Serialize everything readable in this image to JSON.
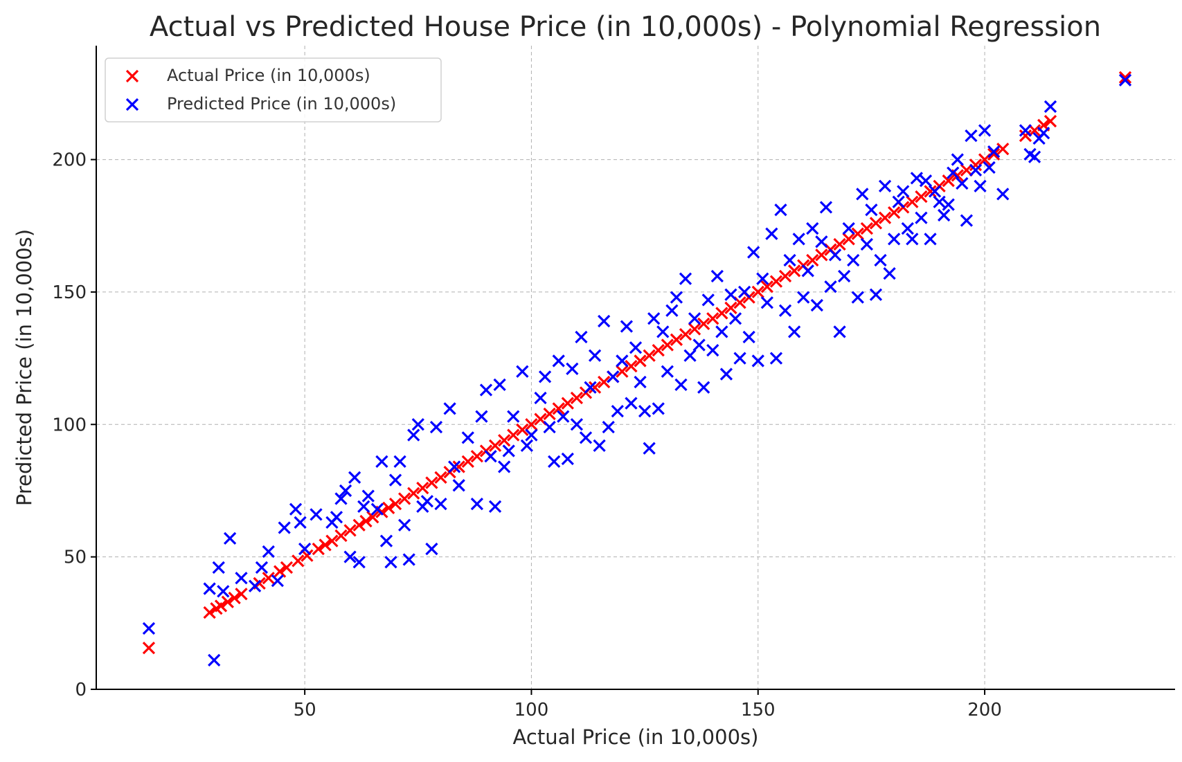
{
  "chart_data": {
    "type": "scatter",
    "title": "Actual vs Predicted House Price (in 10,000s) - Polynomial Regression",
    "xlabel": "Actual Price (in 10,000s)",
    "ylabel": "Predicted Price (in 10,000s)",
    "xlim": [
      4,
      242
    ],
    "ylim": [
      0,
      243
    ],
    "xticks": [
      50,
      100,
      150,
      200
    ],
    "yticks": [
      0,
      50,
      100,
      150,
      200
    ],
    "grid": true,
    "legend_position": "top-left",
    "marker": "x",
    "series": [
      {
        "name": "Actual Price (in 10,000s)",
        "color": "#ff0000",
        "points": [
          [
            15.6,
            15.6
          ],
          [
            29,
            29
          ],
          [
            30.5,
            30.5
          ],
          [
            31.5,
            31.5
          ],
          [
            33,
            33
          ],
          [
            34.5,
            34.5
          ],
          [
            36,
            36
          ],
          [
            40,
            40
          ],
          [
            42,
            42
          ],
          [
            44.5,
            44.5
          ],
          [
            46,
            46
          ],
          [
            48.5,
            48.5
          ],
          [
            50.5,
            50.5
          ],
          [
            53,
            53
          ],
          [
            54.5,
            54.5
          ],
          [
            56,
            56
          ],
          [
            58,
            58
          ],
          [
            60,
            60
          ],
          [
            62,
            62
          ],
          [
            63.5,
            63.5
          ],
          [
            65,
            65
          ],
          [
            67,
            67
          ],
          [
            68.5,
            68.5
          ],
          [
            70,
            70
          ],
          [
            72,
            72
          ],
          [
            74,
            74
          ],
          [
            76,
            76
          ],
          [
            78,
            78
          ],
          [
            80,
            80
          ],
          [
            82,
            82
          ],
          [
            84,
            84
          ],
          [
            86,
            86
          ],
          [
            88,
            88
          ],
          [
            90,
            90
          ],
          [
            92,
            92
          ],
          [
            94,
            94
          ],
          [
            96,
            96
          ],
          [
            98,
            98
          ],
          [
            100,
            100
          ],
          [
            102,
            102
          ],
          [
            104,
            104
          ],
          [
            106,
            106
          ],
          [
            108,
            108
          ],
          [
            110,
            110
          ],
          [
            112,
            112
          ],
          [
            114,
            114
          ],
          [
            116,
            116
          ],
          [
            118,
            118
          ],
          [
            120,
            120
          ],
          [
            122,
            122
          ],
          [
            124,
            124
          ],
          [
            126,
            126
          ],
          [
            128,
            128
          ],
          [
            130,
            130
          ],
          [
            132,
            132
          ],
          [
            134,
            134
          ],
          [
            136,
            136
          ],
          [
            138,
            138
          ],
          [
            140,
            140
          ],
          [
            142,
            142
          ],
          [
            144,
            144
          ],
          [
            146,
            146
          ],
          [
            148,
            148
          ],
          [
            150,
            150
          ],
          [
            152,
            152
          ],
          [
            154,
            154
          ],
          [
            156,
            156
          ],
          [
            158,
            158
          ],
          [
            160,
            160
          ],
          [
            162,
            162
          ],
          [
            164,
            164
          ],
          [
            166,
            166
          ],
          [
            168,
            168
          ],
          [
            170,
            170
          ],
          [
            172,
            172
          ],
          [
            174,
            174
          ],
          [
            176,
            176
          ],
          [
            178,
            178
          ],
          [
            180,
            180
          ],
          [
            182,
            182
          ],
          [
            184,
            184
          ],
          [
            186,
            186
          ],
          [
            188,
            188
          ],
          [
            190,
            190
          ],
          [
            192,
            192
          ],
          [
            194,
            194
          ],
          [
            196,
            196
          ],
          [
            198,
            198
          ],
          [
            200,
            200
          ],
          [
            202,
            202
          ],
          [
            204,
            204
          ],
          [
            209,
            209
          ],
          [
            211,
            211
          ],
          [
            213,
            213
          ],
          [
            214.5,
            214.5
          ],
          [
            231,
            231
          ]
        ]
      },
      {
        "name": "Predicted Price (in 10,000s)",
        "color": "#0000ff",
        "points": [
          [
            15.6,
            23
          ],
          [
            29,
            38
          ],
          [
            30,
            11
          ],
          [
            31,
            46
          ],
          [
            32,
            37
          ],
          [
            33.5,
            57
          ],
          [
            36,
            42
          ],
          [
            39,
            39
          ],
          [
            40.5,
            46
          ],
          [
            42,
            52
          ],
          [
            44,
            41
          ],
          [
            45.5,
            61
          ],
          [
            48,
            68
          ],
          [
            49,
            63
          ],
          [
            50,
            53
          ],
          [
            52.5,
            66
          ],
          [
            56,
            63
          ],
          [
            57,
            65
          ],
          [
            58,
            72
          ],
          [
            59,
            75
          ],
          [
            60,
            50
          ],
          [
            61,
            80
          ],
          [
            62,
            48
          ],
          [
            63,
            69
          ],
          [
            64,
            73
          ],
          [
            66,
            68
          ],
          [
            67,
            86
          ],
          [
            68,
            56
          ],
          [
            69,
            48
          ],
          [
            70,
            79
          ],
          [
            71,
            86
          ],
          [
            72,
            62
          ],
          [
            73,
            49
          ],
          [
            74,
            96
          ],
          [
            75,
            100
          ],
          [
            76,
            69
          ],
          [
            77,
            71
          ],
          [
            78,
            53
          ],
          [
            79,
            99
          ],
          [
            80,
            70
          ],
          [
            82,
            106
          ],
          [
            83,
            84
          ],
          [
            84,
            77
          ],
          [
            86,
            95
          ],
          [
            88,
            70
          ],
          [
            89,
            103
          ],
          [
            90,
            113
          ],
          [
            91,
            88
          ],
          [
            92,
            69
          ],
          [
            93,
            115
          ],
          [
            94,
            84
          ],
          [
            95,
            90
          ],
          [
            96,
            103
          ],
          [
            98,
            120
          ],
          [
            99,
            92
          ],
          [
            100,
            96
          ],
          [
            102,
            110
          ],
          [
            103,
            118
          ],
          [
            104,
            99
          ],
          [
            105,
            86
          ],
          [
            106,
            124
          ],
          [
            107,
            103
          ],
          [
            108,
            87
          ],
          [
            109,
            121
          ],
          [
            110,
            100
          ],
          [
            111,
            133
          ],
          [
            112,
            95
          ],
          [
            113,
            114
          ],
          [
            114,
            126
          ],
          [
            115,
            92
          ],
          [
            116,
            139
          ],
          [
            117,
            99
          ],
          [
            118,
            118
          ],
          [
            119,
            105
          ],
          [
            120,
            124
          ],
          [
            121,
            137
          ],
          [
            122,
            108
          ],
          [
            123,
            129
          ],
          [
            124,
            116
          ],
          [
            125,
            105
          ],
          [
            126,
            91
          ],
          [
            127,
            140
          ],
          [
            128,
            106
          ],
          [
            129,
            135
          ],
          [
            130,
            120
          ],
          [
            131,
            143
          ],
          [
            132,
            148
          ],
          [
            133,
            115
          ],
          [
            134,
            155
          ],
          [
            135,
            126
          ],
          [
            136,
            140
          ],
          [
            137,
            130
          ],
          [
            138,
            114
          ],
          [
            139,
            147
          ],
          [
            140,
            128
          ],
          [
            141,
            156
          ],
          [
            142,
            135
          ],
          [
            143,
            119
          ],
          [
            144,
            149
          ],
          [
            145,
            140
          ],
          [
            146,
            125
          ],
          [
            147,
            150
          ],
          [
            148,
            133
          ],
          [
            149,
            165
          ],
          [
            150,
            124
          ],
          [
            151,
            155
          ],
          [
            152,
            146
          ],
          [
            153,
            172
          ],
          [
            154,
            125
          ],
          [
            155,
            181
          ],
          [
            156,
            143
          ],
          [
            157,
            162
          ],
          [
            158,
            135
          ],
          [
            159,
            170
          ],
          [
            160,
            148
          ],
          [
            161,
            158
          ],
          [
            162,
            174
          ],
          [
            163,
            145
          ],
          [
            164,
            169
          ],
          [
            165,
            182
          ],
          [
            166,
            152
          ],
          [
            167,
            164
          ],
          [
            168,
            135
          ],
          [
            169,
            156
          ],
          [
            170,
            174
          ],
          [
            171,
            162
          ],
          [
            172,
            148
          ],
          [
            173,
            187
          ],
          [
            174,
            168
          ],
          [
            175,
            181
          ],
          [
            176,
            149
          ],
          [
            177,
            162
          ],
          [
            178,
            190
          ],
          [
            179,
            157
          ],
          [
            180,
            170
          ],
          [
            181,
            184
          ],
          [
            182,
            188
          ],
          [
            183,
            174
          ],
          [
            184,
            170
          ],
          [
            185,
            193
          ],
          [
            186,
            178
          ],
          [
            187,
            192
          ],
          [
            188,
            170
          ],
          [
            189,
            188
          ],
          [
            190,
            184
          ],
          [
            191,
            179
          ],
          [
            192,
            183
          ],
          [
            193,
            195
          ],
          [
            194,
            200
          ],
          [
            195,
            191
          ],
          [
            196,
            177
          ],
          [
            197,
            209
          ],
          [
            198,
            196
          ],
          [
            199,
            190
          ],
          [
            200,
            211
          ],
          [
            201,
            197
          ],
          [
            202,
            203
          ],
          [
            204,
            187
          ],
          [
            209,
            211
          ],
          [
            210,
            202
          ],
          [
            211,
            201
          ],
          [
            212,
            208
          ],
          [
            213,
            210
          ],
          [
            214.5,
            220
          ],
          [
            231,
            230
          ]
        ]
      }
    ]
  }
}
